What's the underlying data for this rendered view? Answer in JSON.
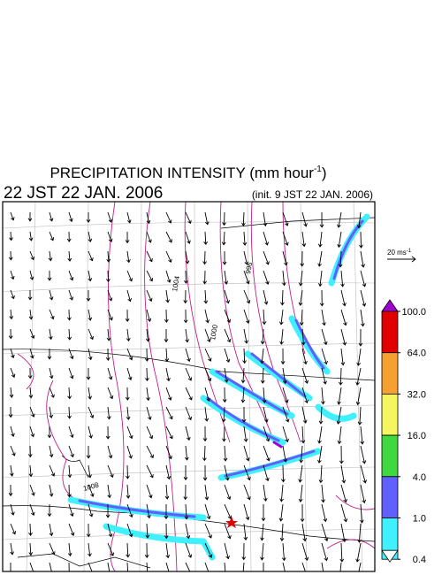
{
  "header": {
    "title_main": "PRECIPITATION INTENSITY (mm hour",
    "title_exp": "-1",
    "title_close": ")",
    "valid_time": "22 JST 22 JAN. 2006",
    "init_time": "(init. 9 JST 22 JAN. 2006)"
  },
  "wind_scale": {
    "label": "20 ms",
    "exp": "-1"
  },
  "isobar_labels": [
    "1008",
    "1004",
    "1000",
    "996"
  ],
  "legend": {
    "ticks": [
      {
        "value": 100,
        "label": "100.0"
      },
      {
        "value": 64,
        "label": "64.0"
      },
      {
        "value": 32,
        "label": "32.0"
      },
      {
        "value": 16,
        "label": "16.0"
      },
      {
        "value": 4,
        "label": "4.0"
      },
      {
        "value": 1,
        "label": "1.0"
      },
      {
        "value": 0.4,
        "label": "0.4"
      }
    ],
    "over_color": "#a000d0",
    "colors": [
      "#e00000",
      "#f5a030",
      "#f5f560",
      "#40d840",
      "#6060ff",
      "#40f0ff"
    ],
    "under_color": "#ffffff"
  }
}
